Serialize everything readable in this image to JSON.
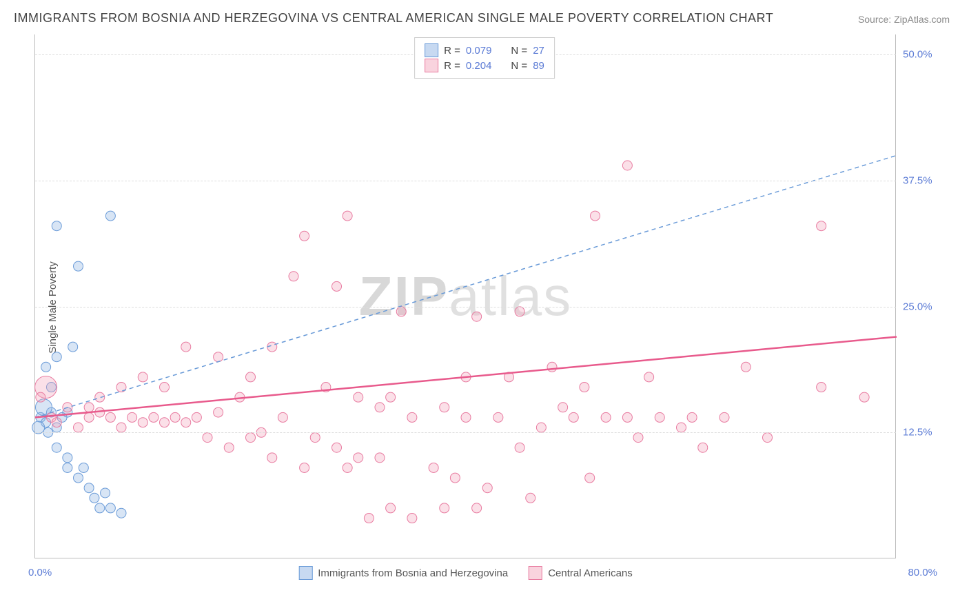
{
  "title": "IMMIGRANTS FROM BOSNIA AND HERZEGOVINA VS CENTRAL AMERICAN SINGLE MALE POVERTY CORRELATION CHART",
  "source": "Source: ZipAtlas.com",
  "ylabel": "Single Male Poverty",
  "watermark_zip": "ZIP",
  "watermark_atlas": "atlas",
  "chart": {
    "type": "scatter",
    "xlim": [
      0,
      80
    ],
    "ylim": [
      0,
      52
    ],
    "x_ticks": [
      {
        "v": 0,
        "label": "0.0%"
      },
      {
        "v": 80,
        "label": "80.0%"
      }
    ],
    "y_ticks": [
      {
        "v": 12.5,
        "label": "12.5%"
      },
      {
        "v": 25.0,
        "label": "25.0%"
      },
      {
        "v": 37.5,
        "label": "37.5%"
      },
      {
        "v": 50.0,
        "label": "50.0%"
      }
    ],
    "grid_color": "#dddddd",
    "background_color": "#ffffff",
    "axis_color": "#bbbbbb",
    "series": [
      {
        "name": "Immigrants from Bosnia and Herzegovina",
        "key": "bosnia",
        "color": "#8fb4e3",
        "fill": "rgba(143,180,227,0.35)",
        "stroke": "#6a9bd8",
        "R": "0.079",
        "N": "27",
        "trend": {
          "dash": "6 5",
          "stroke": "#6a9bd8",
          "width": 1.5,
          "x1": 0,
          "y1": 14,
          "x2": 80,
          "y2": 40
        },
        "points": [
          [
            0.5,
            14,
            7
          ],
          [
            1,
            13.5,
            7
          ],
          [
            1.5,
            14.5,
            7
          ],
          [
            0.8,
            15,
            12
          ],
          [
            0.3,
            13,
            9
          ],
          [
            1.2,
            12.5,
            7
          ],
          [
            2,
            13,
            7
          ],
          [
            2.5,
            14,
            7
          ],
          [
            3,
            14.5,
            7
          ],
          [
            1,
            19,
            7
          ],
          [
            2,
            20,
            7
          ],
          [
            3.5,
            21,
            7
          ],
          [
            1.5,
            17,
            7
          ],
          [
            2,
            33,
            7
          ],
          [
            4,
            29,
            7
          ],
          [
            7,
            34,
            7
          ],
          [
            2,
            11,
            7
          ],
          [
            3,
            9,
            7
          ],
          [
            4,
            8,
            7
          ],
          [
            5,
            7,
            7
          ],
          [
            6,
            5,
            7
          ],
          [
            7,
            5,
            7
          ],
          [
            8,
            4.5,
            7
          ],
          [
            5.5,
            6,
            7
          ],
          [
            6.5,
            6.5,
            7
          ],
          [
            3,
            10,
            7
          ],
          [
            4.5,
            9,
            7
          ]
        ]
      },
      {
        "name": "Central Americans",
        "key": "central",
        "color": "#f4a7bd",
        "fill": "rgba(244,167,189,0.35)",
        "stroke": "#e87ba0",
        "R": "0.204",
        "N": "89",
        "trend": {
          "dash": "none",
          "stroke": "#e85a8c",
          "width": 2.5,
          "x1": 0,
          "y1": 14,
          "x2": 80,
          "y2": 22
        },
        "points": [
          [
            1,
            17,
            16
          ],
          [
            0.5,
            16,
            7
          ],
          [
            1.5,
            14,
            7
          ],
          [
            2,
            13.5,
            7
          ],
          [
            3,
            15,
            7
          ],
          [
            4,
            13,
            7
          ],
          [
            5,
            14,
            7
          ],
          [
            6,
            14.5,
            7
          ],
          [
            7,
            14,
            7
          ],
          [
            8,
            13,
            7
          ],
          [
            9,
            14,
            7
          ],
          [
            10,
            13.5,
            7
          ],
          [
            11,
            14,
            7
          ],
          [
            12,
            13.5,
            7
          ],
          [
            5,
            15,
            7
          ],
          [
            6,
            16,
            7
          ],
          [
            8,
            17,
            7
          ],
          [
            10,
            18,
            7
          ],
          [
            12,
            17,
            7
          ],
          [
            13,
            14,
            7
          ],
          [
            14,
            13.5,
            7
          ],
          [
            14,
            21,
            7
          ],
          [
            15,
            14,
            7
          ],
          [
            16,
            12,
            7
          ],
          [
            17,
            14.5,
            7
          ],
          [
            17,
            20,
            7
          ],
          [
            18,
            11,
            7
          ],
          [
            19,
            16,
            7
          ],
          [
            20,
            12,
            7
          ],
          [
            20,
            18,
            7
          ],
          [
            21,
            12.5,
            7
          ],
          [
            22,
            10,
            7
          ],
          [
            22,
            21,
            7
          ],
          [
            23,
            14,
            7
          ],
          [
            24,
            28,
            7
          ],
          [
            25,
            9,
            7
          ],
          [
            25,
            32,
            7
          ],
          [
            26,
            12,
            7
          ],
          [
            27,
            17,
            7
          ],
          [
            28,
            11,
            7
          ],
          [
            28,
            27,
            7
          ],
          [
            29,
            9,
            7
          ],
          [
            29,
            34,
            7
          ],
          [
            30,
            10,
            7
          ],
          [
            30,
            16,
            7
          ],
          [
            31,
            4,
            7
          ],
          [
            32,
            10,
            7
          ],
          [
            32,
            15,
            7
          ],
          [
            33,
            5,
            7
          ],
          [
            33,
            16,
            7
          ],
          [
            34,
            24.5,
            7
          ],
          [
            35,
            4,
            7
          ],
          [
            35,
            14,
            7
          ],
          [
            37,
            9,
            7
          ],
          [
            38,
            5,
            7
          ],
          [
            38,
            15,
            7
          ],
          [
            39,
            8,
            7
          ],
          [
            40,
            14,
            7
          ],
          [
            40,
            18,
            7
          ],
          [
            41,
            5,
            7
          ],
          [
            41,
            24,
            7
          ],
          [
            42,
            7,
            7
          ],
          [
            43,
            14,
            7
          ],
          [
            44,
            18,
            7
          ],
          [
            45,
            11,
            7
          ],
          [
            45,
            24.5,
            7
          ],
          [
            46,
            6,
            7
          ],
          [
            47,
            13,
            7
          ],
          [
            48,
            19,
            7
          ],
          [
            49,
            15,
            7
          ],
          [
            50,
            14,
            7
          ],
          [
            51,
            17,
            7
          ],
          [
            52,
            34,
            7
          ],
          [
            53,
            14,
            7
          ],
          [
            55,
            14,
            7
          ],
          [
            55,
            39,
            7
          ],
          [
            56,
            12,
            7
          ],
          [
            57,
            18,
            7
          ],
          [
            58,
            14,
            7
          ],
          [
            60,
            13,
            7
          ],
          [
            61,
            14,
            7
          ],
          [
            62,
            11,
            7
          ],
          [
            64,
            14,
            7
          ],
          [
            66,
            19,
            7
          ],
          [
            68,
            12,
            7
          ],
          [
            73,
            17,
            7
          ],
          [
            73,
            33,
            7
          ],
          [
            77,
            16,
            7
          ],
          [
            51.5,
            8,
            7
          ]
        ]
      }
    ]
  },
  "legend_box": {
    "r_label": "R =",
    "n_label": "N ="
  },
  "bottom_legend": {
    "bosnia": "Immigrants from Bosnia and Herzegovina",
    "central": "Central Americans"
  }
}
